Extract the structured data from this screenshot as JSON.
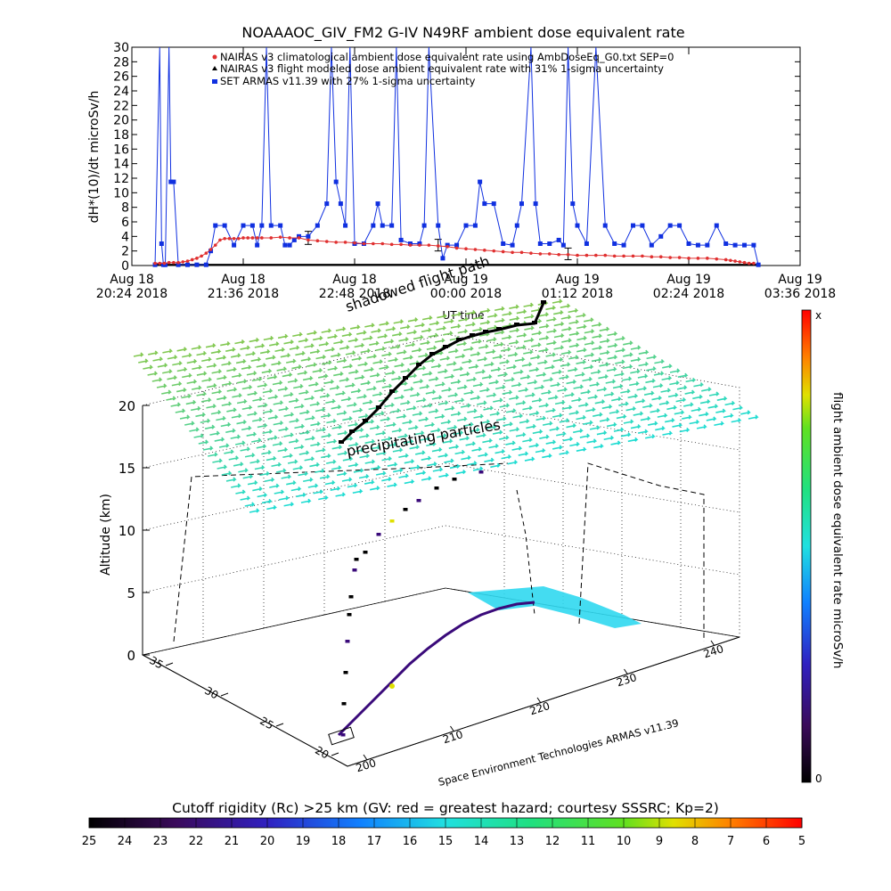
{
  "title": "NOAAAOC_GIV_FM2 G-IV    N49RF  ambient dose equivalent rate",
  "chart_data": [
    {
      "type": "line",
      "title": "NOAAAOC_GIV_FM2 G-IV    N49RF  ambient dose equivalent rate",
      "ylabel": "dH*(10)/dt microSv/h",
      "xlabel": "UT time",
      "ylim": [
        0,
        30
      ],
      "yticks": [
        "0",
        "2",
        "4",
        "6",
        "8",
        "10",
        "12",
        "14",
        "16",
        "18",
        "20",
        "22",
        "24",
        "26",
        "28",
        "30"
      ],
      "xticks": [
        {
          "line1": "Aug 18",
          "line2": "20:24 2018"
        },
        {
          "line1": "Aug 18",
          "line2": "21:36 2018"
        },
        {
          "line1": "Aug 18",
          "line2": "22:48 2018"
        },
        {
          "line1": "Aug 19",
          "line2": "00:00 2018"
        },
        {
          "line1": "Aug 19",
          "line2": "01:12 2018"
        },
        {
          "line1": "Aug 19",
          "line2": "02:24 2018"
        },
        {
          "line1": "Aug 19",
          "line2": "03:36 2018"
        }
      ],
      "legend": [
        "NAIRAS v3 climatological ambient dose equivalent rate using AmbDoseEq_G0.txt SEP=0",
        "NAIRAS v3 flight modeled dose ambient equivalent rate with 31% 1-sigma uncertainty",
        "SET ARMAS v11.39 with 27% 1-sigma uncertainty"
      ],
      "legend_position": "top-left",
      "series": [
        {
          "name": "NAIRAS v3 climatological ambient dose equivalent rate using AmbDoseEq_G0.txt SEP=0",
          "color": "#e03030",
          "x": [
            0.25,
            0.3,
            0.35,
            0.4,
            0.45,
            0.5,
            0.55,
            0.6,
            0.65,
            0.7,
            0.75,
            0.8,
            0.85,
            0.9,
            0.95,
            1.0,
            1.05,
            1.1,
            1.15,
            1.2,
            1.25,
            1.3,
            1.35,
            1.4,
            1.5,
            1.6,
            1.7,
            1.8,
            1.9,
            2.0,
            2.1,
            2.2,
            2.3,
            2.4,
            2.5,
            2.6,
            2.7,
            2.8,
            2.9,
            3.0,
            3.1,
            3.2,
            3.3,
            3.4,
            3.5,
            3.6,
            3.7,
            3.8,
            3.9,
            4.0,
            4.1,
            4.2,
            4.3,
            4.4,
            4.5,
            4.6,
            4.7,
            4.8,
            4.9,
            5.0,
            5.1,
            5.2,
            5.3,
            5.4,
            5.5,
            5.6,
            5.7,
            5.8,
            5.9,
            6.0,
            6.1,
            6.2,
            6.3,
            6.4,
            6.45,
            6.5,
            6.55,
            6.6,
            6.65,
            6.7
          ],
          "y": [
            0.3,
            0.3,
            0.3,
            0.4,
            0.4,
            0.4,
            0.5,
            0.6,
            0.8,
            1.0,
            1.3,
            1.7,
            2.2,
            2.8,
            3.5,
            3.7,
            3.7,
            3.7,
            3.7,
            3.8,
            3.8,
            3.8,
            3.8,
            3.8,
            3.8,
            3.9,
            3.8,
            3.8,
            3.5,
            3.4,
            3.3,
            3.2,
            3.2,
            3.1,
            3.0,
            3.0,
            3.0,
            2.9,
            2.9,
            2.8,
            2.8,
            2.8,
            2.7,
            2.6,
            2.4,
            2.3,
            2.2,
            2.1,
            2.0,
            1.9,
            1.8,
            1.8,
            1.7,
            1.6,
            1.6,
            1.5,
            1.5,
            1.4,
            1.4,
            1.4,
            1.4,
            1.3,
            1.3,
            1.3,
            1.3,
            1.2,
            1.2,
            1.1,
            1.1,
            1.0,
            1.0,
            1.0,
            0.9,
            0.8,
            0.7,
            0.6,
            0.5,
            0.4,
            0.3,
            0.3
          ]
        },
        {
          "name": "NAIRAS v3 flight modeled dose ambient equivalent rate with 31% 1-sigma uncertainty",
          "color": "#000000",
          "x": [
            0.25,
            0.5,
            1.0,
            1.5,
            2.0,
            2.5,
            3.0,
            3.5,
            4.0,
            4.5,
            5.0,
            5.5,
            6.0,
            6.5,
            6.75
          ],
          "y": [
            0.1,
            0.1,
            0.1,
            0.1,
            0.1,
            0.1,
            0.1,
            0.1,
            0.1,
            0.1,
            0.1,
            0.1,
            0.1,
            0.1,
            0.1
          ],
          "error_bars": [
            {
              "x": 1.9,
              "y": 3.8,
              "err": 0.9
            },
            {
              "x": 3.3,
              "y": 2.8,
              "err": 0.8
            },
            {
              "x": 4.7,
              "y": 1.6,
              "err": 0.8
            }
          ]
        },
        {
          "name": "SET ARMAS v11.39 with 27% 1-sigma uncertainty",
          "color": "#1030e0",
          "x": [
            0.25,
            0.3,
            0.32,
            0.34,
            0.36,
            0.4,
            0.42,
            0.45,
            0.5,
            0.6,
            0.7,
            0.8,
            0.85,
            0.9,
            1.0,
            1.1,
            1.2,
            1.3,
            1.35,
            1.4,
            1.45,
            1.5,
            1.6,
            1.65,
            1.7,
            1.75,
            1.8,
            1.9,
            2.0,
            2.1,
            2.15,
            2.2,
            2.25,
            2.3,
            2.35,
            2.4,
            2.5,
            2.6,
            2.65,
            2.7,
            2.8,
            2.85,
            2.9,
            3.0,
            3.1,
            3.15,
            3.2,
            3.3,
            3.35,
            3.4,
            3.5,
            3.6,
            3.7,
            3.75,
            3.8,
            3.9,
            4.0,
            4.1,
            4.15,
            4.2,
            4.3,
            4.35,
            4.4,
            4.5,
            4.6,
            4.65,
            4.7,
            4.75,
            4.8,
            4.9,
            5.0,
            5.1,
            5.2,
            5.3,
            5.4,
            5.5,
            5.6,
            5.7,
            5.8,
            5.9,
            6.0,
            6.1,
            6.2,
            6.3,
            6.4,
            6.5,
            6.6,
            6.7,
            6.75
          ],
          "y": [
            0.1,
            30,
            3,
            0.1,
            0.1,
            30,
            11.5,
            11.5,
            0.1,
            0.1,
            0.1,
            0.1,
            2,
            5.5,
            5.5,
            2.8,
            5.5,
            5.5,
            2.8,
            5.5,
            30,
            5.5,
            5.5,
            2.8,
            2.8,
            3.5,
            4,
            4,
            5.5,
            8.5,
            30,
            11.5,
            8.5,
            5.5,
            30,
            3,
            3,
            5.5,
            8.5,
            5.5,
            5.5,
            30,
            3.5,
            3,
            3,
            5.5,
            30,
            5.5,
            1,
            2.8,
            2.8,
            5.5,
            5.5,
            11.5,
            8.5,
            8.5,
            3,
            2.8,
            5.5,
            8.5,
            30,
            8.5,
            3,
            3,
            3.5,
            2.8,
            30,
            8.5,
            5.5,
            3,
            30,
            5.5,
            3,
            2.8,
            5.5,
            5.5,
            2.8,
            4,
            5.5,
            5.5,
            3,
            2.8,
            2.8,
            5.5,
            3,
            2.8,
            2.8,
            2.8,
            0.1
          ]
        }
      ],
      "x_range": [
        0,
        7.2
      ]
    },
    {
      "type": "scatter",
      "subtype": "3d-flight-track",
      "ylabel": "Altitude (km)",
      "zticks": [
        "0",
        "5",
        "10",
        "15",
        "20"
      ],
      "x_axis_title": "Space Environment Technologies ARMAS v11.39",
      "lon_ticks": [
        "200",
        "210",
        "220",
        "230",
        "240"
      ],
      "lat_ticks": [
        "20",
        "25",
        "30",
        "35"
      ],
      "annotations": [
        "precipitating particles",
        "shadowed flight path"
      ],
      "colorbar_label": "flight ambient dose equivalent rate microSv/h",
      "colorbar_max_label": "x",
      "colorbar_min_label": "0",
      "track": {
        "lon": [
          200,
          203,
          206,
          210,
          214,
          218,
          221,
          224,
          226,
          228
        ],
        "lat": [
          20,
          21,
          23.5,
          26,
          28.5,
          31,
          32.5,
          33.5,
          34,
          35
        ],
        "alt": [
          0,
          12,
          12.5,
          12.5,
          13,
          13,
          13.2,
          13.5,
          13.5,
          13.5
        ]
      }
    }
  ],
  "colorbar_bottom": {
    "title": "Cutoff rigidity (Rc) >25 km (GV: red = greatest hazard; courtesy SSSRC; Kp=2)",
    "ticks": [
      "25",
      "24",
      "23",
      "22",
      "21",
      "20",
      "19",
      "18",
      "17",
      "16",
      "15",
      "14",
      "13",
      "12",
      "11",
      "10",
      "9",
      "8",
      "7",
      "6",
      "5"
    ]
  }
}
